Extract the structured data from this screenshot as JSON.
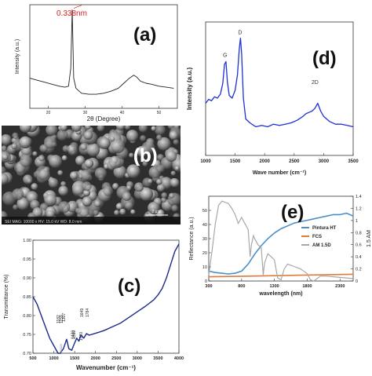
{
  "panels": {
    "a": {
      "letter": "(a)"
    },
    "b": {
      "letter": "(b)"
    },
    "c": {
      "letter": "(c)"
    },
    "d": {
      "letter": "(d)"
    },
    "e": {
      "letter": "(e)"
    }
  },
  "sem": {
    "footer_text": "SEI  MAG: 10000 x  HV: 15.0 kV  WD: 8.0 mm",
    "scale_label": "2 μm"
  },
  "chart_data": [
    {
      "id": "a",
      "type": "line",
      "title": "",
      "xlabel": "2θ (Degree)",
      "ylabel": "Intensity (a.u.)",
      "xlim": [
        15,
        55
      ],
      "ylim": [
        0,
        1
      ],
      "xticks": [
        20,
        30,
        40,
        50
      ],
      "peak_annotation": {
        "x": 26.5,
        "label": "0.338nm"
      },
      "series": [
        {
          "color": "#222222",
          "x": [
            15,
            17,
            19,
            21,
            23,
            24.5,
            25.5,
            26.1,
            26.5,
            26.9,
            27.5,
            29,
            31,
            33,
            35,
            37,
            39,
            40.5,
            42,
            43.2,
            44,
            45,
            46.5,
            48,
            50,
            52,
            54
          ],
          "y": [
            0.3,
            0.28,
            0.26,
            0.24,
            0.22,
            0.21,
            0.22,
            0.4,
            0.98,
            0.3,
            0.2,
            0.15,
            0.14,
            0.14,
            0.15,
            0.17,
            0.2,
            0.25,
            0.3,
            0.33,
            0.31,
            0.27,
            0.25,
            0.24,
            0.22,
            0.21,
            0.2
          ]
        }
      ]
    },
    {
      "id": "c",
      "type": "line",
      "title": "",
      "xlabel": "Wavenumber (cm⁻¹)",
      "ylabel": "Transmittance (%)",
      "xlim": [
        500,
        4000
      ],
      "ylim": [
        0.7,
        1.0
      ],
      "xticks": [
        500,
        1000,
        1500,
        2000,
        2500,
        3000,
        3500,
        4000
      ],
      "yticks": [
        0.7,
        0.75,
        0.8,
        0.85,
        0.9,
        0.95,
        1.0
      ],
      "yticklabels": [
        "0.70",
        "0.75",
        "0.80",
        "0.85",
        "0.90",
        "0.95",
        "1.00"
      ],
      "annotations": [
        {
          "x": 1182,
          "label": "1182"
        },
        {
          "x": 1159,
          "label": "1159"
        },
        {
          "x": 1307,
          "label": "1307"
        },
        {
          "x": 1430,
          "label": "1430"
        },
        {
          "x": 1550,
          "label": "1550"
        },
        {
          "x": 1649,
          "label": "1649"
        },
        {
          "x": 1720,
          "label": "1720"
        },
        {
          "x": 1784,
          "label": "1784"
        }
      ],
      "series": [
        {
          "color": "#1a2a8a",
          "x": [
            500,
            600,
            700,
            800,
            900,
            1000,
            1100,
            1160,
            1185,
            1230,
            1307,
            1360,
            1430,
            1490,
            1550,
            1600,
            1649,
            1720,
            1784,
            1850,
            2000,
            2200,
            2400,
            2600,
            2800,
            3000,
            3200,
            3400,
            3500,
            3600,
            3700,
            3800,
            3900,
            4000
          ],
          "y": [
            0.85,
            0.83,
            0.8,
            0.77,
            0.74,
            0.72,
            0.7,
            0.7,
            0.705,
            0.712,
            0.737,
            0.712,
            0.708,
            0.725,
            0.74,
            0.732,
            0.748,
            0.74,
            0.752,
            0.748,
            0.753,
            0.76,
            0.77,
            0.78,
            0.795,
            0.81,
            0.825,
            0.842,
            0.855,
            0.872,
            0.9,
            0.935,
            0.97,
            0.99
          ]
        }
      ]
    },
    {
      "id": "d",
      "type": "line",
      "title": "",
      "xlabel": "Wave number (cm⁻¹)",
      "ylabel": "Intensity (a.u.)",
      "xlim": [
        1000,
        3500
      ],
      "ylim": [
        0,
        1
      ],
      "xticks": [
        1000,
        1500,
        2000,
        2500,
        3000,
        3500
      ],
      "annotations": [
        {
          "x": 1345,
          "label": "G"
        },
        {
          "x": 1590,
          "label": "D"
        },
        {
          "x": 2900,
          "label": "2D"
        }
      ],
      "series": [
        {
          "color": "#1f2fd6",
          "x": [
            1000,
            1050,
            1100,
            1150,
            1200,
            1250,
            1290,
            1320,
            1345,
            1370,
            1400,
            1450,
            1500,
            1540,
            1570,
            1590,
            1610,
            1640,
            1680,
            1750,
            1850,
            1950,
            2050,
            2150,
            2250,
            2350,
            2450,
            2550,
            2650,
            2700,
            2750,
            2800,
            2850,
            2900,
            2950,
            3000,
            3100,
            3200,
            3300,
            3400,
            3500
          ],
          "y": [
            0.4,
            0.43,
            0.42,
            0.45,
            0.44,
            0.47,
            0.55,
            0.7,
            0.72,
            0.56,
            0.46,
            0.44,
            0.5,
            0.62,
            0.82,
            0.9,
            0.78,
            0.44,
            0.28,
            0.25,
            0.22,
            0.23,
            0.22,
            0.24,
            0.23,
            0.24,
            0.25,
            0.27,
            0.3,
            0.32,
            0.33,
            0.34,
            0.36,
            0.4,
            0.34,
            0.3,
            0.26,
            0.24,
            0.24,
            0.23,
            0.22
          ]
        }
      ]
    },
    {
      "id": "e",
      "type": "line",
      "title": "",
      "xlabel": "wavelength (nm)",
      "ylabel": "Reflectance (a.u.)",
      "y2label": "1.5 AM",
      "xlim": [
        300,
        2500
      ],
      "ylim": [
        0,
        60
      ],
      "y2lim": [
        0,
        1.4
      ],
      "xticks": [
        300,
        800,
        1300,
        1800,
        2300
      ],
      "yticks": [
        0,
        10,
        20,
        30,
        40,
        50
      ],
      "y2ticks": [
        0,
        0.2,
        0.4,
        0.6,
        0.8,
        1.0,
        1.2,
        1.4
      ],
      "y2ticklabels": [
        "0",
        "0.2",
        "0.4",
        "0.6",
        "0.8",
        "1",
        "1.2",
        "1.4"
      ],
      "legend_position": "center-right",
      "series": [
        {
          "name": "Pintura HT",
          "axis": "left",
          "color": "#4a8ec8",
          "x": [
            300,
            400,
            500,
            600,
            700,
            800,
            900,
            1000,
            1100,
            1200,
            1300,
            1400,
            1500,
            1600,
            1700,
            1800,
            1900,
            2000,
            2100,
            2200,
            2300,
            2400,
            2500
          ],
          "y": [
            7,
            6,
            5.5,
            5,
            5.5,
            7,
            12,
            19,
            25,
            30,
            34,
            37,
            39,
            41,
            42,
            43,
            44,
            45,
            46,
            47,
            47,
            48,
            46
          ]
        },
        {
          "name": "FCS",
          "axis": "left",
          "color": "#e07b39",
          "x": [
            300,
            800,
            1300,
            1800,
            2300,
            2500
          ],
          "y": [
            3,
            3.4,
            3.8,
            4.2,
            4.6,
            4.8
          ]
        },
        {
          "name": "AM 1.5D",
          "axis": "right",
          "color": "#a8a8a8",
          "x": [
            300,
            350,
            400,
            450,
            500,
            550,
            600,
            650,
            700,
            750,
            800,
            850,
            900,
            930,
            950,
            980,
            1000,
            1050,
            1100,
            1130,
            1150,
            1200,
            1250,
            1300,
            1350,
            1400,
            1450,
            1500,
            1550,
            1600,
            1700,
            1800,
            1850,
            1900,
            1950,
            2000,
            2100,
            2200,
            2300,
            2400,
            2500
          ],
          "y": [
            0.1,
            0.5,
            0.95,
            1.25,
            1.32,
            1.3,
            1.28,
            1.2,
            1.1,
            0.95,
            1.05,
            0.95,
            0.85,
            0.4,
            0.6,
            0.75,
            0.7,
            0.6,
            0.55,
            0.1,
            0.3,
            0.45,
            0.4,
            0.35,
            0.05,
            0.02,
            0.2,
            0.28,
            0.26,
            0.24,
            0.2,
            0.12,
            0.02,
            0.0,
            0.04,
            0.08,
            0.08,
            0.07,
            0.06,
            0.05,
            0.04
          ]
        }
      ]
    }
  ]
}
